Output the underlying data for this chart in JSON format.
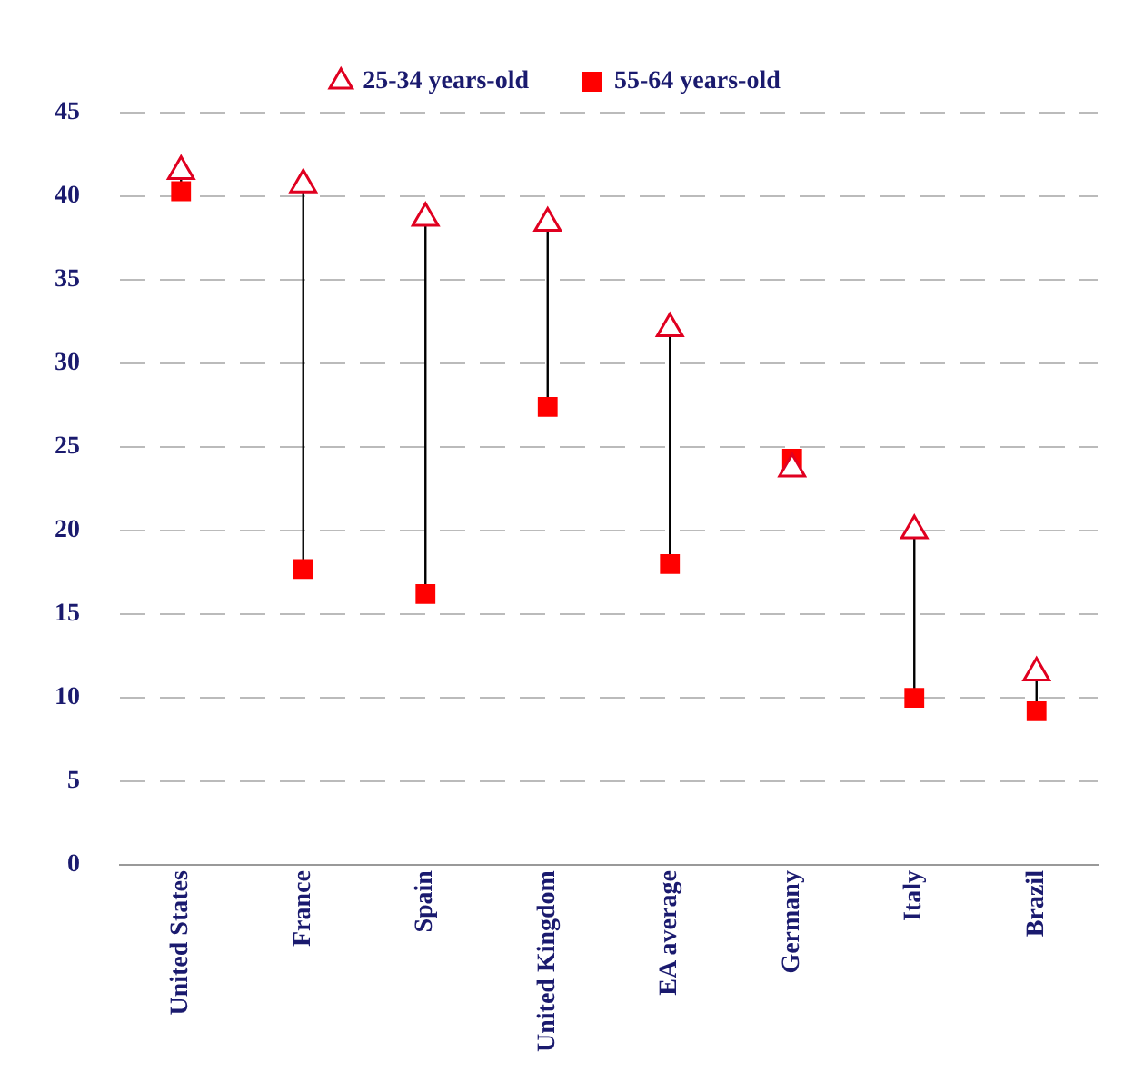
{
  "chart_data": {
    "type": "scatter",
    "categories": [
      "United States",
      "France",
      "Spain",
      "United Kingdom",
      "EA average",
      "Germany",
      "Italy",
      "Brazil"
    ],
    "series": [
      {
        "name": "25-34 years-old",
        "color": "#e00020",
        "marker": "triangle",
        "values": [
          41.5,
          40.7,
          38.7,
          38.4,
          32.1,
          23.7,
          20.0,
          11.5
        ]
      },
      {
        "name": "55-64 years-old",
        "color": "#ff0000",
        "marker": "square",
        "values": [
          40.3,
          17.7,
          16.2,
          27.4,
          18.0,
          24.3,
          10.0,
          9.2
        ]
      }
    ],
    "ylim": [
      0,
      45
    ],
    "yticks": [
      0,
      5,
      10,
      15,
      20,
      25,
      30,
      35,
      40,
      45
    ],
    "grid": "y",
    "legend": "top"
  }
}
